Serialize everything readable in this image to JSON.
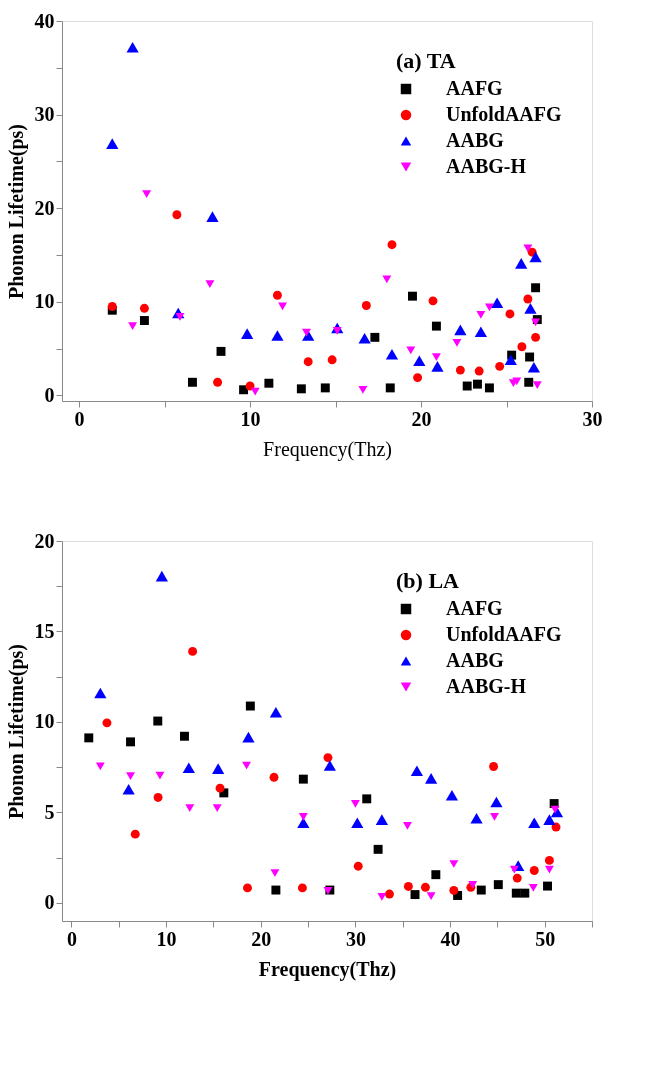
{
  "chart_data": [
    {
      "type": "scatter",
      "legend_title": "(a) TA",
      "xlabel": "Frequency(Thz)",
      "ylabel": "Phonon Lifetime(ps)",
      "legend": "top right",
      "grid": false,
      "xlim": [
        -1,
        30
      ],
      "ylim": [
        -0.6,
        40
      ],
      "xticks": [
        0,
        {
          "value": 5,
          "label": null
        },
        10,
        {
          "value": 15,
          "label": null
        },
        20,
        {
          "value": 25,
          "label": null
        },
        30
      ],
      "yticks": [
        0,
        {
          "value": 5,
          "label": null
        },
        10,
        {
          "value": 15,
          "label": null
        },
        20,
        {
          "value": 25,
          "label": null
        },
        30,
        {
          "value": 35,
          "label": null
        },
        40
      ],
      "series": [
        {
          "name": "AAFG",
          "color": "#000000",
          "marker": "square",
          "x": [
            1.94,
            3.82,
            6.63,
            8.3,
            9.62,
            11.1,
            13.0,
            14.4,
            17.3,
            18.2,
            19.5,
            20.9,
            22.7,
            23.3,
            24.0,
            25.3,
            26.3,
            26.35,
            26.7,
            26.8
          ],
          "values": [
            9.1,
            8.0,
            1.4,
            4.7,
            0.6,
            1.3,
            0.7,
            0.8,
            6.2,
            0.8,
            10.6,
            7.4,
            1.0,
            1.2,
            0.8,
            4.3,
            1.4,
            4.1,
            11.5,
            8.1
          ]
        },
        {
          "name": "UnfoldAAFG",
          "color": "#ff0000",
          "marker": "circle",
          "x": [
            1.94,
            3.82,
            5.72,
            8.1,
            10.0,
            11.6,
            13.4,
            14.8,
            16.8,
            18.3,
            19.8,
            20.7,
            22.3,
            23.4,
            24.6,
            25.2,
            25.9,
            26.25,
            26.5,
            26.7
          ],
          "values": [
            9.5,
            9.3,
            19.3,
            1.4,
            1.0,
            10.7,
            3.6,
            3.8,
            9.6,
            16.1,
            1.9,
            10.1,
            2.7,
            2.6,
            3.1,
            8.7,
            5.2,
            10.3,
            15.3,
            6.2
          ]
        },
        {
          "name": "AABG",
          "color": "#0000ff",
          "marker": "triangle",
          "x": [
            1.94,
            3.13,
            5.8,
            7.8,
            9.83,
            11.6,
            13.4,
            15.1,
            16.7,
            18.3,
            19.9,
            20.96,
            22.3,
            23.5,
            24.45,
            25.25,
            25.86,
            26.4,
            26.6,
            26.7
          ],
          "values": [
            26.9,
            37.2,
            8.8,
            19.1,
            6.6,
            6.4,
            6.4,
            7.2,
            6.1,
            4.4,
            3.7,
            3.1,
            7.0,
            6.8,
            9.9,
            3.8,
            14.1,
            9.3,
            3.0,
            14.8
          ]
        },
        {
          "name": "AABG-H",
          "color": "#ff00ff",
          "marker": "triangle-down",
          "x": [
            3.13,
            3.95,
            5.9,
            7.65,
            10.3,
            11.9,
            13.3,
            15.1,
            16.6,
            18.0,
            19.4,
            20.9,
            22.1,
            23.5,
            24.0,
            25.4,
            25.6,
            26.25,
            26.7,
            26.8
          ],
          "values": [
            7.4,
            21.5,
            8.4,
            11.9,
            0.4,
            9.5,
            6.7,
            6.9,
            0.6,
            12.4,
            4.8,
            4.1,
            5.6,
            8.6,
            9.4,
            1.3,
            1.5,
            15.7,
            7.8,
            1.1
          ]
        }
      ]
    },
    {
      "type": "scatter",
      "legend_title": "(b) LA",
      "xlabel": "Frequency(Thz)",
      "ylabel": "Phonon Lifetime(ps)",
      "legend": "top right",
      "grid": false,
      "xlim": [
        -1,
        55
      ],
      "ylim": [
        -1,
        20
      ],
      "xticks": [
        0,
        {
          "value": 5,
          "label": null
        },
        10,
        {
          "value": 15,
          "label": null
        },
        20,
        {
          "value": 25,
          "label": null
        },
        30,
        {
          "value": 35,
          "label": null
        },
        40,
        {
          "value": 45,
          "label": null
        },
        50,
        {
          "value": 55,
          "label": null
        }
      ],
      "yticks": [
        0,
        {
          "value": 2.5,
          "label": null
        },
        5,
        {
          "value": 7.5,
          "label": null
        },
        10,
        {
          "value": 12.5,
          "label": null
        },
        15,
        {
          "value": 17.5,
          "label": null
        },
        20
      ],
      "series": [
        {
          "name": "AAFG",
          "color": "#000000",
          "marker": "square",
          "x": [
            1.83,
            6.24,
            9.12,
            11.94,
            16.1,
            18.9,
            21.6,
            24.5,
            27.3,
            31.2,
            32.4,
            36.3,
            38.5,
            40.8,
            43.3,
            45.1,
            47.0,
            47.9,
            50.3,
            51.0
          ],
          "values": [
            9.12,
            8.9,
            10.05,
            9.21,
            6.08,
            10.88,
            0.71,
            6.84,
            0.71,
            5.75,
            2.96,
            0.46,
            1.56,
            0.41,
            0.71,
            1.01,
            0.54,
            0.54,
            0.93,
            5.49
          ]
        },
        {
          "name": "UnfoldAAFG",
          "color": "#ff0000",
          "marker": "circle",
          "x": [
            3.75,
            6.74,
            9.15,
            12.8,
            15.7,
            18.6,
            21.4,
            24.4,
            27.1,
            30.3,
            33.6,
            35.6,
            37.4,
            40.4,
            42.2,
            44.6,
            47.1,
            48.9,
            50.5,
            51.2
          ],
          "values": [
            9.95,
            3.8,
            5.83,
            13.9,
            6.34,
            0.83,
            6.94,
            0.83,
            8.03,
            2.03,
            0.49,
            0.91,
            0.86,
            0.69,
            0.86,
            7.54,
            1.37,
            1.79,
            2.35,
            4.19
          ]
        },
        {
          "name": "AABG",
          "color": "#0000ff",
          "marker": "triangle",
          "x": [
            3.05,
            6.04,
            9.55,
            12.4,
            15.5,
            18.7,
            21.6,
            24.5,
            27.3,
            30.2,
            32.8,
            36.5,
            38.0,
            40.2,
            42.8,
            44.9,
            47.2,
            48.9,
            50.5,
            51.3
          ],
          "values": [
            11.6,
            6.28,
            18.06,
            7.47,
            7.42,
            9.16,
            10.54,
            4.43,
            7.59,
            4.43,
            4.6,
            7.3,
            6.88,
            5.95,
            4.68,
            5.58,
            2.06,
            4.43,
            4.6,
            5.02
          ]
        },
        {
          "name": "AABG-H",
          "color": "#ff00ff",
          "marker": "triangle-down",
          "x": [
            3.05,
            6.24,
            9.35,
            12.5,
            15.4,
            18.5,
            21.5,
            24.5,
            27.1,
            30.0,
            32.8,
            35.5,
            38.0,
            40.4,
            42.4,
            44.7,
            46.8,
            48.8,
            50.5,
            51.1
          ],
          "values": [
            7.55,
            7.01,
            7.04,
            5.24,
            5.24,
            7.59,
            1.64,
            4.76,
            0.66,
            5.47,
            0.34,
            4.26,
            0.37,
            2.15,
            1.0,
            4.76,
            1.84,
            0.83,
            1.84,
            5.15
          ]
        }
      ]
    }
  ]
}
